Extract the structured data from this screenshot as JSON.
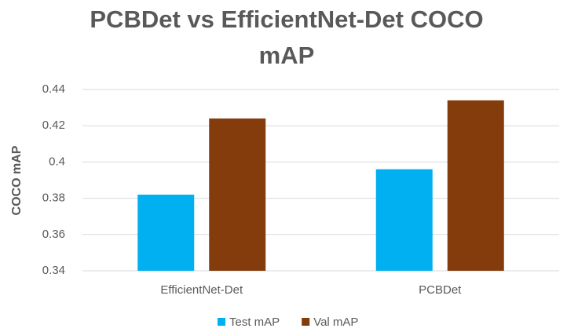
{
  "chart_data": {
    "type": "bar",
    "title": "PCBDet vs EfficientNet-Det COCO mAP",
    "y_label": "COCO mAP",
    "categories": [
      "EfficientNet-Det",
      "PCBDet"
    ],
    "series": [
      {
        "name": "Test mAP",
        "color": "#00b0f0",
        "values": [
          0.382,
          0.396
        ]
      },
      {
        "name": "Val mAP",
        "color": "#843c0c",
        "values": [
          0.424,
          0.434
        ]
      }
    ],
    "ylim": [
      0.34,
      0.44
    ],
    "yticks": [
      0.34,
      0.36,
      0.38,
      0.4,
      0.42,
      0.44
    ],
    "grid": true,
    "legend": "bottom"
  }
}
